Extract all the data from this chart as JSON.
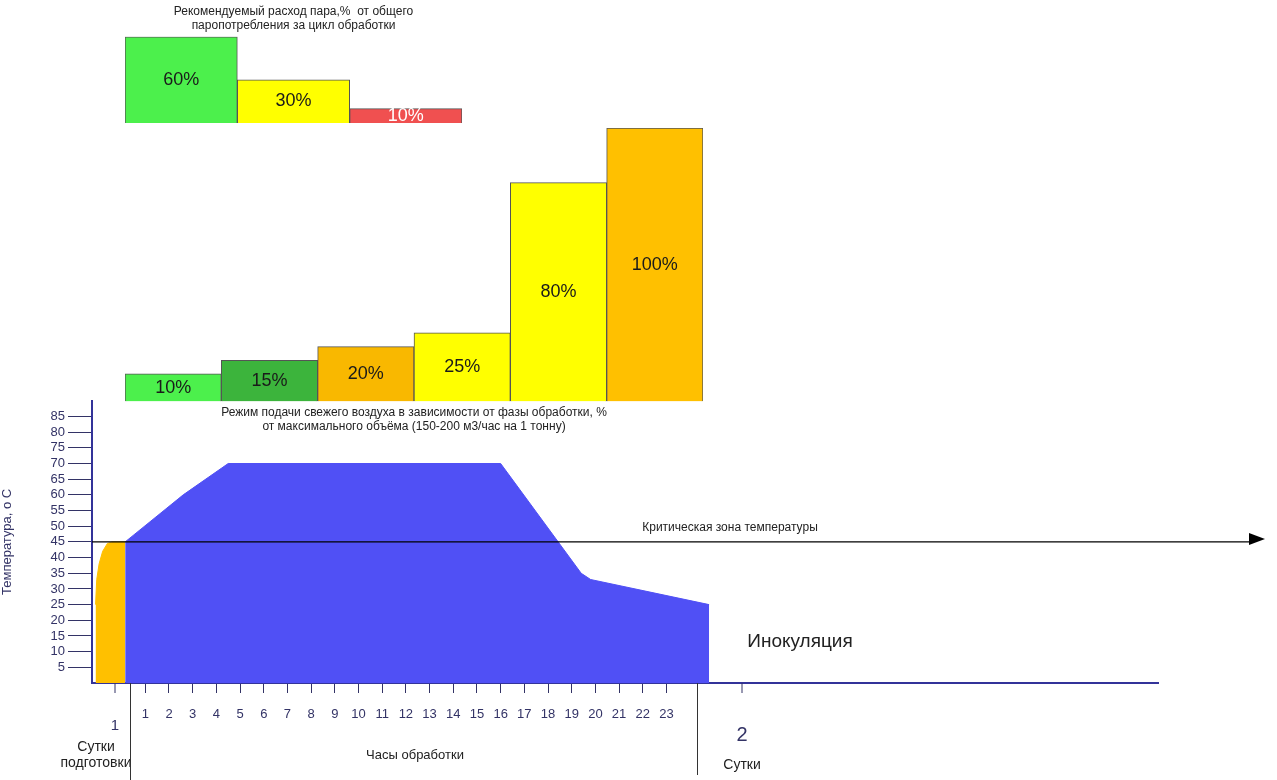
{
  "chart_data": [
    {
      "type": "bar",
      "title": "Рекомендуемый расход пара,%  от общего\nпаропотребления за цикл обработки",
      "categories": [
        null,
        null,
        null
      ],
      "values": [
        60,
        30,
        10
      ],
      "colors": [
        "#4cf04c",
        "#ffff00",
        "#f05050"
      ],
      "value_labels": [
        "60%",
        "30%",
        "10%"
      ]
    },
    {
      "type": "bar",
      "title": "Режим подачи свежего воздуха в зависимости от фазы обработки, %\nот максимального объёма (150-200 м3/час на 1 тонну)",
      "categories": [
        null,
        null,
        null,
        null,
        null,
        null
      ],
      "values": [
        10,
        15,
        20,
        25,
        80,
        100
      ],
      "colors": [
        "#4cf04c",
        "#3cb43c",
        "#f9b800",
        "#ffff00",
        "#ffff00",
        "#ffc000"
      ],
      "value_labels": [
        "10%",
        "15%",
        "20%",
        "25%",
        "80%",
        "100%"
      ]
    },
    {
      "type": "area",
      "ylabel": "Температура, о С",
      "xlabel": "Часы обработки",
      "marker": "none",
      "grid": false,
      "series": [
        {
          "color": "#ffc000",
          "x": [
            -1.1,
            -1.05,
            -0.95,
            -0.8,
            -0.6,
            -0.4,
            0.15
          ],
          "values": [
            25,
            33,
            38,
            42,
            44.5,
            45,
            45
          ]
        },
        {
          "color": "#5050f5",
          "x": [
            0.15,
            2.6,
            4.5,
            16,
            19.4,
            19.8,
            24.8
          ],
          "values": [
            45,
            60,
            70,
            70,
            35,
            33,
            25
          ]
        }
      ],
      "xlim": [
        -1.25,
        43.75
      ],
      "xticks": [
        1,
        2,
        3,
        4,
        5,
        6,
        7,
        8,
        9,
        10,
        11,
        12,
        13,
        14,
        15,
        16,
        17,
        18,
        19,
        20,
        21,
        22,
        23
      ],
      "ylim": [
        0,
        90
      ],
      "yticks": [
        5,
        10,
        15,
        20,
        25,
        30,
        35,
        40,
        45,
        50,
        55,
        60,
        65,
        70,
        75,
        80,
        85
      ],
      "ref_lines": [
        {
          "axis": "y",
          "value": 45,
          "label": "Критическая зона температуры",
          "color": "#000000"
        }
      ],
      "annotations": [
        "Сутки подготовки",
        "Сутки",
        "Инокуляция",
        "1",
        "2"
      ]
    }
  ]
}
